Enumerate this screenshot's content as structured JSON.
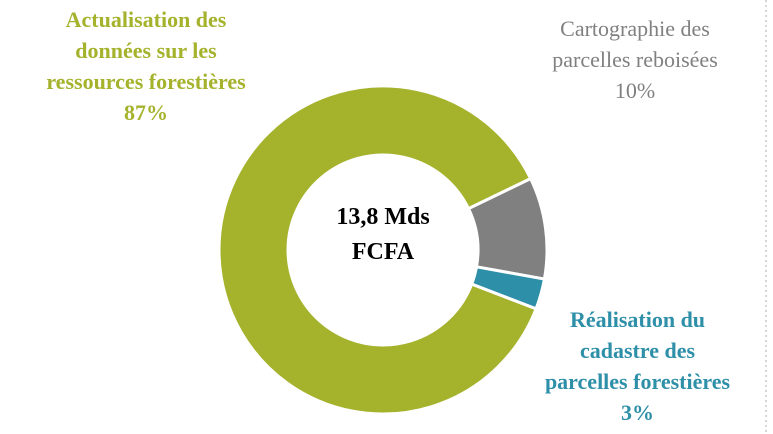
{
  "chart_data": {
    "type": "donut",
    "center_label": "13,8 Mds\nFCFA",
    "categories": [
      "Actualisation des\ndonnées sur les\nressources forestières",
      "Cartographie des\nparcelles reboisées",
      "Réalisation du\ncadastre des\nparcelles forestières"
    ],
    "values": [
      87,
      10,
      3
    ],
    "value_labels": [
      "87%",
      "10%",
      "3%"
    ],
    "colors": [
      "#a5b22c",
      "#808080",
      "#2e8fa8"
    ],
    "label_bold": [
      true,
      false,
      true
    ]
  }
}
